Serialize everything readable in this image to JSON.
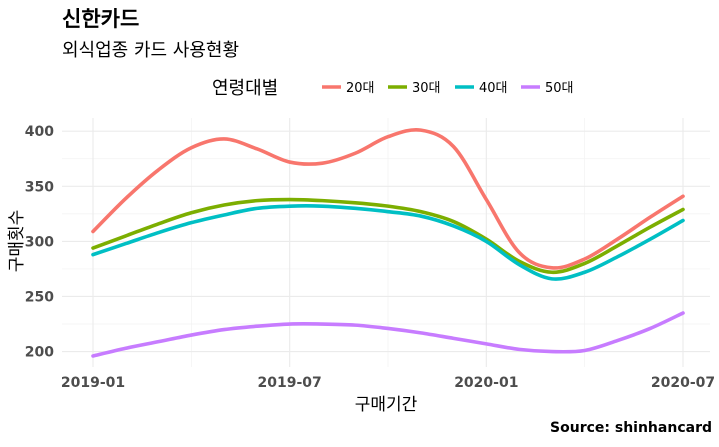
{
  "chart_data": {
    "type": "line",
    "title": "신한카드",
    "subtitle": "외식업종 카드 사용현황",
    "xlabel": "구매기간",
    "ylabel": "구매횟수",
    "caption": "Source: shinhancard",
    "legend": {
      "title": "연령대별",
      "position": "top"
    },
    "x": [
      "2019-01",
      "2019-02",
      "2019-03",
      "2019-04",
      "2019-05",
      "2019-06",
      "2019-07",
      "2019-08",
      "2019-09",
      "2019-10",
      "2019-11",
      "2019-12",
      "2020-01",
      "2020-02",
      "2020-03",
      "2020-04",
      "2020-05",
      "2020-06",
      "2020-07"
    ],
    "x_ticks": [
      "2019-01",
      "2019-07",
      "2020-01",
      "2020-07"
    ],
    "y_ticks": [
      200,
      250,
      300,
      350,
      400
    ],
    "ylim": [
      186,
      412
    ],
    "grid": true,
    "series": [
      {
        "name": "20대",
        "color": "#F8766D",
        "values": [
          309,
          339,
          365,
          385,
          393,
          384,
          372,
          371,
          380,
          395,
          401,
          386,
          338,
          290,
          276,
          284,
          302,
          322,
          341
        ]
      },
      {
        "name": "30대",
        "color": "#7CAE00",
        "values": [
          294,
          305,
          316,
          326,
          333,
          337,
          338,
          337,
          335,
          332,
          327,
          318,
          302,
          282,
          272,
          280,
          296,
          313,
          329
        ]
      },
      {
        "name": "40대",
        "color": "#00BFC4",
        "values": [
          288,
          298,
          308,
          317,
          324,
          330,
          332,
          332,
          330,
          327,
          323,
          314,
          300,
          279,
          266,
          272,
          286,
          302,
          319
        ]
      },
      {
        "name": "50대",
        "color": "#C77CFF",
        "values": [
          196,
          203,
          209,
          215,
          220,
          223,
          225,
          225,
          224,
          221,
          217,
          212,
          207,
          202,
          200,
          201,
          210,
          221,
          235
        ]
      }
    ]
  }
}
